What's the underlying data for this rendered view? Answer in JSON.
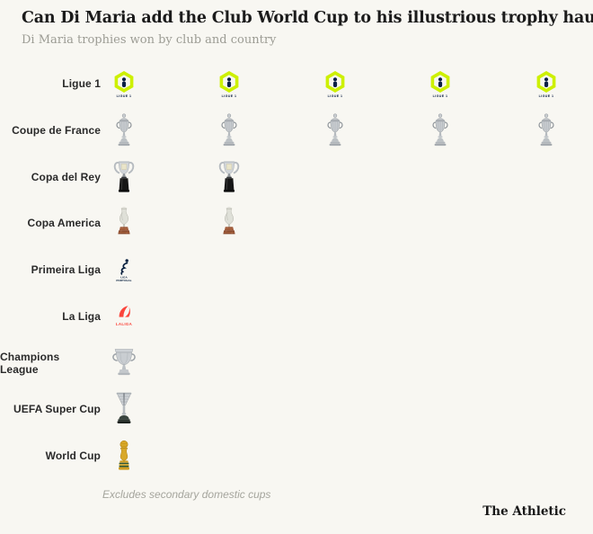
{
  "header": {
    "title": "Can Di Maria add the Club World Cup to his illustrious trophy haul?",
    "subtitle": "Di Maria trophies won by club and country"
  },
  "footer": {
    "note": "Excludes secondary domestic cups",
    "branding": "The Athletic"
  },
  "chart_data": {
    "type": "pictogram",
    "title": "Can Di Maria add the Club World Cup to his illustrious trophy haul?",
    "subtitle": "Di Maria trophies won by club and country",
    "categories": [
      "Ligue 1",
      "Coupe de France",
      "Copa del Rey",
      "Copa America",
      "Primeira Liga",
      "La Liga",
      "Champions League",
      "UEFA Super Cup",
      "World Cup"
    ],
    "values": [
      5,
      5,
      2,
      2,
      1,
      1,
      1,
      1,
      1
    ],
    "unit": "trophies won",
    "max_columns": 5,
    "legend": false,
    "note": "Excludes secondary domestic cups",
    "rows": [
      {
        "label": "Ligue 1",
        "count": 5,
        "icon": "ligue1-badge",
        "caption": "LIGUE 1"
      },
      {
        "label": "Coupe de France",
        "count": 5,
        "icon": "coupe-de-france-trophy"
      },
      {
        "label": "Copa del Rey",
        "count": 2,
        "icon": "copa-del-rey-trophy"
      },
      {
        "label": "Copa America",
        "count": 2,
        "icon": "copa-america-trophy"
      },
      {
        "label": "Primeira Liga",
        "count": 1,
        "icon": "primeira-liga-badge",
        "caption_lines": [
          "LIGA",
          "PORTUGAL"
        ]
      },
      {
        "label": "La Liga",
        "count": 1,
        "icon": "laliga-badge",
        "caption": "LALIGA"
      },
      {
        "label": "Champions League",
        "count": 1,
        "icon": "champions-league-trophy"
      },
      {
        "label": "UEFA Super Cup",
        "count": 1,
        "icon": "uefa-super-cup-trophy"
      },
      {
        "label": "World Cup",
        "count": 1,
        "icon": "world-cup-trophy"
      }
    ]
  },
  "colors": {
    "background": "#f8f7f2",
    "title_text": "#1b1b1b",
    "subtitle_text": "#9c9c94",
    "label_text": "#2a2a2a",
    "note_text": "#a5a59d",
    "ligue1_lime": "#cdf000",
    "ligue1_navy": "#0a1f44",
    "laliga_red": "#fb453c",
    "primeira_navy": "#0a2240",
    "trophy_silver": "#c9cdd1",
    "trophy_gold": "#d8a829",
    "copa_america_base_brown": "#8a4a2e",
    "copa_del_rey_base_black": "#161616",
    "world_cup_band_green": "#2e5939"
  }
}
